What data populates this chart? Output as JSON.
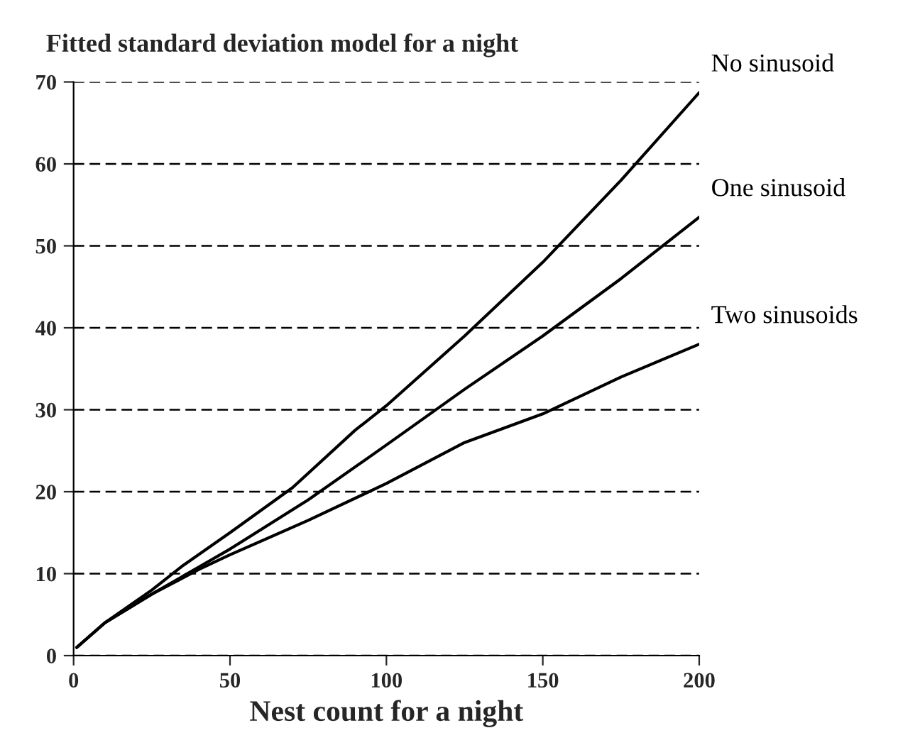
{
  "chart_data": {
    "type": "line",
    "title": "Fitted standard deviation model for a night",
    "xlabel": "Nest count for a night",
    "xlim": [
      0,
      200
    ],
    "xticks": [
      0,
      50,
      100,
      150,
      200
    ],
    "ylim": [
      0,
      70
    ],
    "yticks": [
      0,
      10,
      20,
      30,
      40,
      50,
      60,
      70
    ],
    "grid": "y",
    "line_style": "solid",
    "legend": false,
    "series": [
      {
        "name": "No sinusoid",
        "color": "#000000",
        "x": [
          1,
          10,
          25,
          35,
          50,
          70,
          90,
          100,
          125,
          150,
          175,
          200
        ],
        "values": [
          1,
          4,
          8,
          11,
          15,
          20.5,
          27.5,
          30.5,
          39,
          48,
          58,
          68.7
        ]
      },
      {
        "name": "One sinusoid",
        "color": "#000000",
        "x": [
          1,
          10,
          25,
          40,
          50,
          75,
          100,
          125,
          150,
          175,
          200
        ],
        "values": [
          1,
          4,
          7.5,
          10.8,
          13,
          19,
          25.7,
          32.5,
          39,
          46,
          53.5
        ]
      },
      {
        "name": "Two sinusoids",
        "color": "#000000",
        "x": [
          1,
          10,
          25,
          40,
          50,
          75,
          100,
          125,
          150,
          175,
          200
        ],
        "values": [
          1,
          4,
          7.5,
          10.5,
          12.3,
          16.5,
          21,
          26,
          29.5,
          34,
          38
        ]
      }
    ]
  }
}
